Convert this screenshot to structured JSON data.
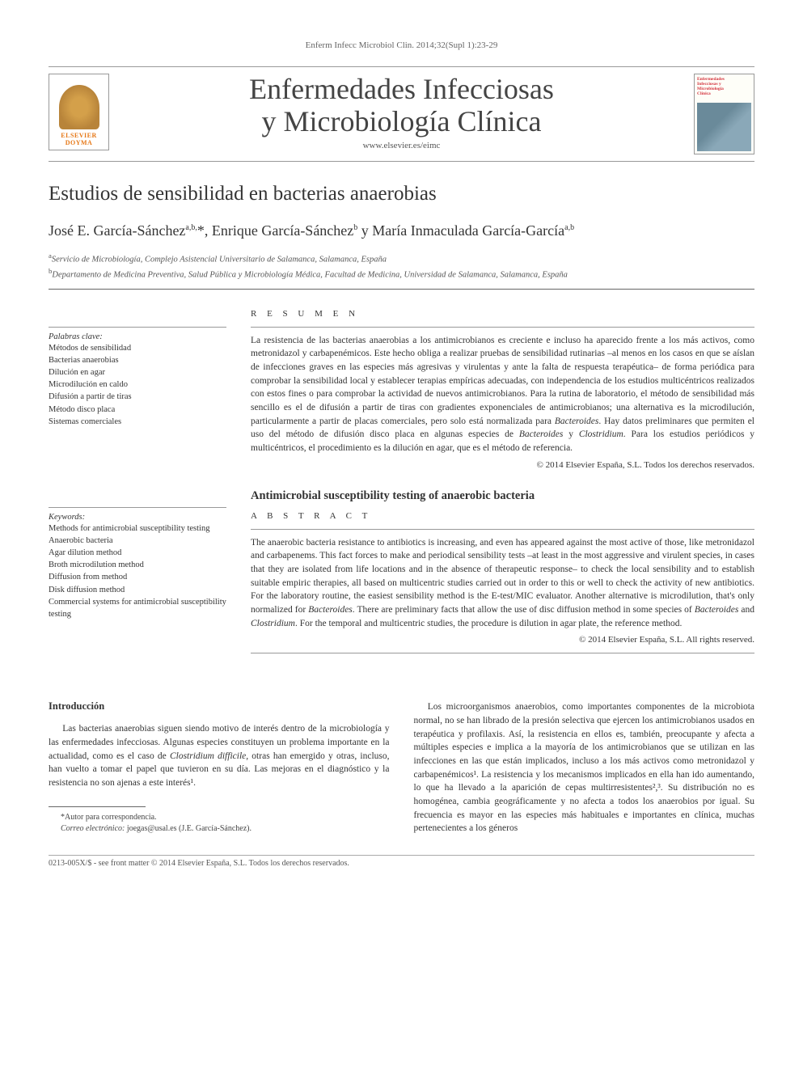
{
  "citation": "Enferm Infecc Microbiol Clin. 2014;32(Supl 1):23-29",
  "publisher_logo": {
    "line1": "ELSEVIER",
    "line2": "DOYMA"
  },
  "journal": {
    "title_line1": "Enfermedades Infecciosas",
    "title_line2": "y Microbiología Clínica",
    "url": "www.elsevier.es/eimc"
  },
  "cover": {
    "title_line1": "Enfermedades",
    "title_line2": "Infecciosas y",
    "title_line3": "Microbiología",
    "title_line4": "Clínica"
  },
  "article_title": "Estudios de sensibilidad en bacterias anaerobias",
  "authors_html": "José E. García-Sánchez<sup>a,b,</sup>*, Enrique García-Sánchez<sup>b</sup> y María Inmaculada García-García<sup>a,b</sup>",
  "affiliations": [
    {
      "sup": "a",
      "text": "Servicio de Microbiología, Complejo Asistencial Universitario de Salamanca, Salamanca, España"
    },
    {
      "sup": "b",
      "text": "Departamento de Medicina Preventiva, Salud Pública y Microbiología Médica, Facultad de Medicina, Universidad de Salamanca, Salamanca, España"
    }
  ],
  "es": {
    "palabras_head": "Palabras clave:",
    "keywords": [
      "Métodos de sensibilidad",
      "Bacterias anaerobias",
      "Dilución en agar",
      "Microdilución en caldo",
      "Difusión a partir de tiras",
      "Método disco placa",
      "Sistemas comerciales"
    ],
    "resumen_head": "R E S U M E N",
    "resumen": "La resistencia de las bacterias anaerobias a los antimicrobianos es creciente e incluso ha aparecido frente a los más activos, como metronidazol y carbapenémicos. Este hecho obliga a realizar pruebas de sensibilidad rutinarias –al menos en los casos en que se aíslan de infecciones graves en las especies más agresivas y virulentas y ante la falta de respuesta terapéutica– de forma periódica para comprobar la sensibilidad local y establecer terapias empíricas adecuadas, con independencia de los estudios multicéntricos realizados con estos fines o para comprobar la actividad de nuevos antimicrobianos. Para la rutina de laboratorio, el método de sensibilidad más sencillo es el de difusión a partir de tiras con gradientes exponenciales de antimicrobianos; una alternativa es la microdilución, particularmente a partir de placas comerciales, pero solo está normalizada para Bacteroides. Hay datos preliminares que permiten el uso del método de difusión disco placa en algunas especies de Bacteroides y Clostridium. Para los estudios periódicos y multicéntricos, el procedimiento es la dilución en agar, que es el método de referencia.",
    "copyright": "© 2014 Elsevier España, S.L. Todos los derechos reservados."
  },
  "en": {
    "title": "Antimicrobial susceptibility testing of anaerobic bacteria",
    "abstract_head": "A B S T R A C T",
    "keywords_head": "Keywords:",
    "keywords": [
      "Methods for antimicrobial susceptibility testing",
      "Anaerobic bacteria",
      "Agar dilution method",
      "Broth microdilution method",
      "Diffusion from method",
      "Disk diffusion method",
      "Commercial systems for antimicrobial susceptibility testing"
    ],
    "abstract": "The anaerobic bacteria resistance to antibiotics is increasing, and even has appeared against the most active of those, like metronidazol and carbapenems. This fact forces to make and periodical sensibility tests –at least in the most aggressive and virulent species, in cases that they are isolated from life locations and in the absence of therapeutic response– to check the local sensibility and to establish suitable empiric therapies, all based on multicentric studies carried out in order to this or well to check the activity of new antibiotics. For the laboratory routine, the easiest sensibility method is the E-test/MIC evaluator. Another alternative is microdilution, that's only normalized for Bacteroides. There are preliminary facts that allow the use of disc diffusion method in some species of Bacteroides and Clostridium. For the temporal and multicentric studies, the procedure is dilution in agar plate, the reference method.",
    "copyright": "© 2014 Elsevier España, S.L. All rights reserved."
  },
  "body": {
    "intro_head": "Introducción",
    "col1_p1": "Las bacterias anaerobias siguen siendo motivo de interés dentro de la microbiología y las enfermedades infecciosas. Algunas especies constituyen un problema importante en la actualidad, como es el caso de Clostridium difficile, otras han emergido y otras, incluso, han vuelto a tomar el papel que tuvieron en su día. Las mejoras en el diagnóstico y la resistencia no son ajenas a este interés¹.",
    "col2_p1": "Los microorganismos anaerobios, como importantes componentes de la microbiota normal, no se han librado de la presión selectiva que ejercen los antimicrobianos usados en terapéutica y profilaxis. Así, la resistencia en ellos es, también, preocupante y afecta a múltiples especies e implica a la mayoría de los antimicrobianos que se utilizan en las infecciones en las que están implicados, incluso a los más activos como metronidazol y carbapenémicos¹. La resistencia y los mecanismos implicados en ella han ido aumentando, lo que ha llevado a la aparición de cepas multirresistentes²,³. Su distribución no es homogénea, cambia geográficamente y no afecta a todos los anaerobios por igual. Su frecuencia es mayor en las especies más habituales e importantes en clínica, muchas pertenecientes a los géneros"
  },
  "footnote": {
    "corr": "*Autor para correspondencia.",
    "email_label": "Correo electrónico:",
    "email": "joegas@usal.es (J.E. García-Sánchez)."
  },
  "footer": "0213-005X/$ - see front matter © 2014 Elsevier España, S.L. Todos los derechos reservados.",
  "colors": {
    "text": "#333333",
    "rule": "#999999",
    "elsevier_orange": "#e67817",
    "cover_red": "#d4333e"
  },
  "fonts": {
    "body_size_pt": 11.5,
    "title_size_pt": 25,
    "journal_title_pt": 36,
    "authors_pt": 18,
    "keywords_pt": 10.5
  }
}
